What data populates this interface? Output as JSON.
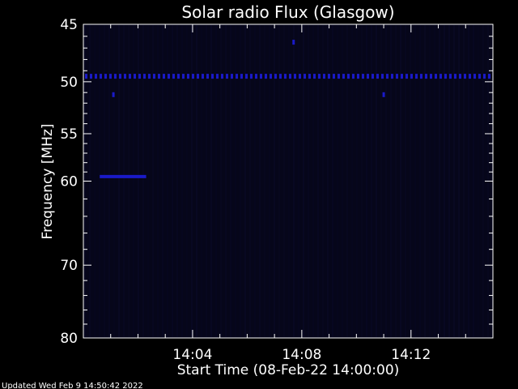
{
  "chart_data": {
    "type": "heatmap",
    "title": "Solar radio Flux (Glasgow)",
    "xlabel": "Start Time (08-Feb-22 14:00:00)",
    "ylabel": "Frequency [MHz]",
    "x_unit": "minutes after 14:00:00",
    "xlim": [
      0,
      15
    ],
    "ylim": [
      45,
      80
    ],
    "x_ticks": [
      {
        "value": 4,
        "label": "14:04"
      },
      {
        "value": 8,
        "label": "14:08"
      },
      {
        "value": 12,
        "label": "14:12"
      }
    ],
    "y_ticks": [
      {
        "value": 45,
        "label": "45"
      },
      {
        "value": 50,
        "label": "50"
      },
      {
        "value": 55,
        "label": "55"
      },
      {
        "value": 60,
        "label": "60"
      },
      {
        "value": 70,
        "label": "70"
      },
      {
        "value": 80,
        "label": "80"
      }
    ],
    "features": [
      {
        "name": "persistent-band",
        "frequency_mhz": 49.5,
        "time_start": 0,
        "time_end": 15
      },
      {
        "name": "burst-segment",
        "frequency_mhz": 59.5,
        "time_start": 0.6,
        "time_end": 2.3
      },
      {
        "name": "spot-1",
        "frequency_mhz": 51.2,
        "time": 1.1
      },
      {
        "name": "spot-2",
        "frequency_mhz": 51.2,
        "time": 11.0
      },
      {
        "name": "spot-3",
        "frequency_mhz": 46.5,
        "time": 7.7
      }
    ],
    "colors": {
      "background": "#000000",
      "plot_background": "#06061a",
      "signal": "#1a1ac8",
      "axes": "#ffffff"
    }
  },
  "footer": {
    "updated_text": "Updated Wed Feb  9 14:50:42 2022"
  }
}
